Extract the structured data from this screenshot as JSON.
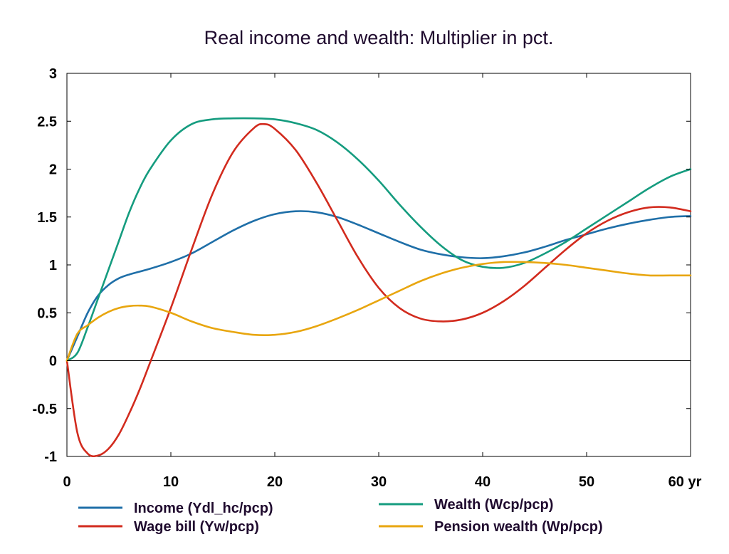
{
  "chart_data": {
    "type": "line",
    "title": "Real income and wealth: Multiplier in pct.",
    "xlim": [
      0,
      60
    ],
    "ylim": [
      -1,
      3
    ],
    "x_ticks": [
      0,
      10,
      20,
      30,
      40,
      50,
      60
    ],
    "x_tick_labels": [
      "0",
      "10",
      "20",
      "30",
      "40",
      "50",
      "60 yr"
    ],
    "y_ticks": [
      -1,
      -0.5,
      0,
      0.5,
      1,
      1.5,
      2,
      2.5,
      3
    ],
    "y_tick_labels": [
      "-1",
      "-0.5",
      "0",
      "0.5",
      "1",
      "1.5",
      "2",
      "2.5",
      "3"
    ],
    "grid": false,
    "zero_line": true,
    "legend_position": "bottom",
    "series": [
      {
        "name": "Income (Ydl_hc/pcp)",
        "color": "#1f6fa8",
        "x": [
          0,
          1,
          2,
          3,
          4,
          5,
          6,
          8,
          10,
          12,
          14,
          16,
          18,
          20,
          22,
          24,
          26,
          28,
          30,
          32,
          34,
          36,
          38,
          40,
          42,
          44,
          46,
          48,
          50,
          52,
          54,
          56,
          58,
          60
        ],
        "y": [
          0,
          0.25,
          0.5,
          0.68,
          0.79,
          0.86,
          0.9,
          0.96,
          1.03,
          1.12,
          1.24,
          1.36,
          1.46,
          1.53,
          1.56,
          1.55,
          1.5,
          1.42,
          1.33,
          1.24,
          1.16,
          1.11,
          1.08,
          1.07,
          1.09,
          1.13,
          1.19,
          1.26,
          1.32,
          1.38,
          1.43,
          1.47,
          1.5,
          1.51
        ]
      },
      {
        "name": "Wealth (Wcp/pcp)",
        "color": "#159c7f",
        "x": [
          0,
          1,
          2,
          3,
          4,
          5,
          6,
          7,
          8,
          10,
          12,
          14,
          16,
          18,
          20,
          22,
          24,
          26,
          28,
          30,
          32,
          34,
          36,
          38,
          40,
          42,
          44,
          46,
          48,
          50,
          52,
          54,
          56,
          58,
          60
        ],
        "y": [
          0,
          0.08,
          0.35,
          0.65,
          0.95,
          1.25,
          1.55,
          1.8,
          2.0,
          2.3,
          2.47,
          2.52,
          2.53,
          2.53,
          2.52,
          2.48,
          2.41,
          2.28,
          2.1,
          1.88,
          1.63,
          1.4,
          1.2,
          1.05,
          0.98,
          0.97,
          1.02,
          1.12,
          1.24,
          1.38,
          1.52,
          1.66,
          1.8,
          1.92,
          2.0
        ]
      },
      {
        "name": "Wage bill (Yw/pcp)",
        "color": "#d22b1e",
        "x": [
          0,
          1,
          2,
          3,
          4,
          5,
          6,
          7,
          8,
          10,
          12,
          14,
          16,
          18,
          19,
          20,
          22,
          24,
          26,
          28,
          30,
          32,
          34,
          36,
          38,
          40,
          42,
          44,
          46,
          48,
          50,
          52,
          54,
          56,
          58,
          60
        ],
        "y": [
          0,
          -0.75,
          -0.97,
          -0.99,
          -0.92,
          -0.77,
          -0.55,
          -0.3,
          -0.02,
          0.55,
          1.16,
          1.74,
          2.18,
          2.43,
          2.47,
          2.42,
          2.2,
          1.86,
          1.47,
          1.08,
          0.76,
          0.55,
          0.44,
          0.41,
          0.43,
          0.5,
          0.62,
          0.78,
          0.97,
          1.16,
          1.33,
          1.46,
          1.55,
          1.6,
          1.6,
          1.56
        ]
      },
      {
        "name": "Pension wealth (Wp/pcp)",
        "color": "#e8a60f",
        "x": [
          0,
          1,
          2,
          3,
          4,
          5,
          6,
          7,
          8,
          10,
          12,
          14,
          16,
          18,
          20,
          22,
          24,
          26,
          28,
          30,
          32,
          34,
          36,
          38,
          40,
          42,
          44,
          46,
          48,
          50,
          52,
          54,
          56,
          58,
          60
        ],
        "y": [
          0,
          0.28,
          0.37,
          0.45,
          0.51,
          0.55,
          0.57,
          0.575,
          0.565,
          0.5,
          0.41,
          0.34,
          0.3,
          0.27,
          0.27,
          0.3,
          0.36,
          0.44,
          0.53,
          0.63,
          0.73,
          0.83,
          0.91,
          0.97,
          1.01,
          1.03,
          1.03,
          1.02,
          1.0,
          0.97,
          0.94,
          0.91,
          0.89,
          0.89,
          0.89
        ]
      }
    ]
  }
}
